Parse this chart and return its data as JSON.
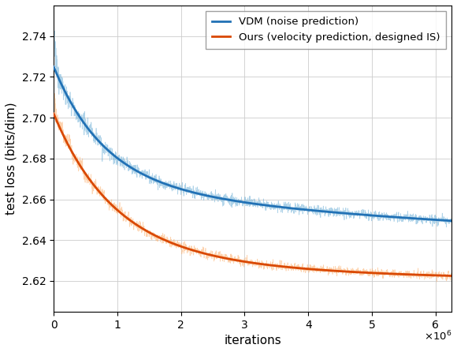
{
  "title": "",
  "xlabel": "iterations",
  "ylabel": "test loss (bits/dim)",
  "xlim": [
    0,
    6250000.0
  ],
  "ylim": [
    2.605,
    2.755
  ],
  "xticks": [
    0,
    1000000.0,
    2000000.0,
    3000000.0,
    4000000.0,
    5000000.0,
    6000000.0
  ],
  "xtick_labels": [
    "0",
    "1",
    "2",
    "3",
    "4",
    "5",
    "6"
  ],
  "blue_color": "#6BAED6",
  "blue_smooth_color": "#2171B5",
  "orange_color": "#FDAE6B",
  "orange_smooth_color": "#D94801",
  "legend_labels": [
    "VDM (noise prediction)",
    "Ours (velocity prediction, designed IS)"
  ],
  "n_points": 6250,
  "x_max": 6250000.0,
  "figsize": [
    5.8,
    4.46
  ],
  "dpi": 100
}
